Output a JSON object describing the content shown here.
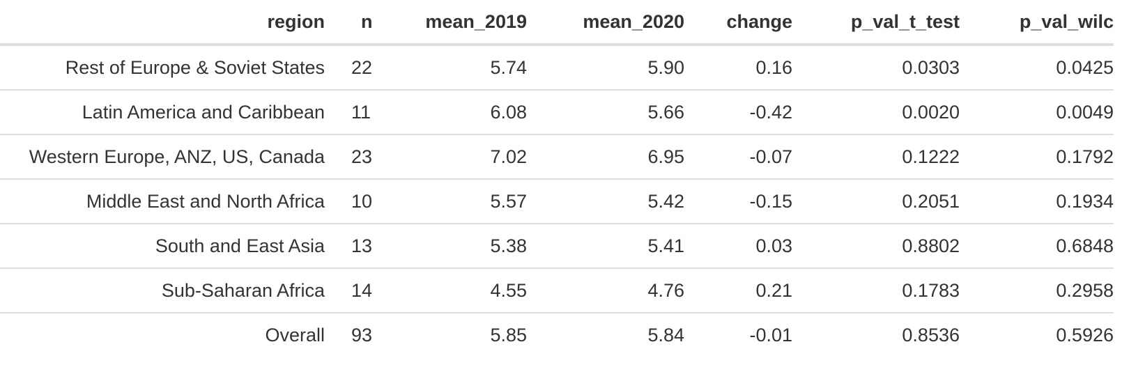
{
  "table": {
    "columns": [
      "region",
      "n",
      "mean_2019",
      "mean_2020",
      "change",
      "p_val_t_test",
      "p_val_wilc"
    ],
    "rows": [
      {
        "region": "Rest of Europe & Soviet States",
        "n": "22",
        "mean_2019": "5.74",
        "mean_2020": "5.90",
        "change": "0.16",
        "p_val_t_test": "0.0303",
        "p_val_wilc": "0.0425"
      },
      {
        "region": "Latin America and Caribbean",
        "n": "11",
        "mean_2019": "6.08",
        "mean_2020": "5.66",
        "change": "-0.42",
        "p_val_t_test": "0.0020",
        "p_val_wilc": "0.0049"
      },
      {
        "region": "Western Europe, ANZ, US, Canada",
        "n": "23",
        "mean_2019": "7.02",
        "mean_2020": "6.95",
        "change": "-0.07",
        "p_val_t_test": "0.1222",
        "p_val_wilc": "0.1792"
      },
      {
        "region": "Middle East and North Africa",
        "n": "10",
        "mean_2019": "5.57",
        "mean_2020": "5.42",
        "change": "-0.15",
        "p_val_t_test": "0.2051",
        "p_val_wilc": "0.1934"
      },
      {
        "region": "South and East Asia",
        "n": "13",
        "mean_2019": "5.38",
        "mean_2020": "5.41",
        "change": "0.03",
        "p_val_t_test": "0.8802",
        "p_val_wilc": "0.6848"
      },
      {
        "region": "Sub-Saharan Africa",
        "n": "14",
        "mean_2019": "4.55",
        "mean_2020": "4.76",
        "change": "0.21",
        "p_val_t_test": "0.1783",
        "p_val_wilc": "0.2958"
      },
      {
        "region": "Overall",
        "n": "93",
        "mean_2019": "5.85",
        "mean_2020": "5.84",
        "change": "-0.01",
        "p_val_t_test": "0.8536",
        "p_val_wilc": "0.5926"
      }
    ]
  },
  "colors": {
    "text": "#333333",
    "border": "#dddddd",
    "background": "#ffffff"
  }
}
